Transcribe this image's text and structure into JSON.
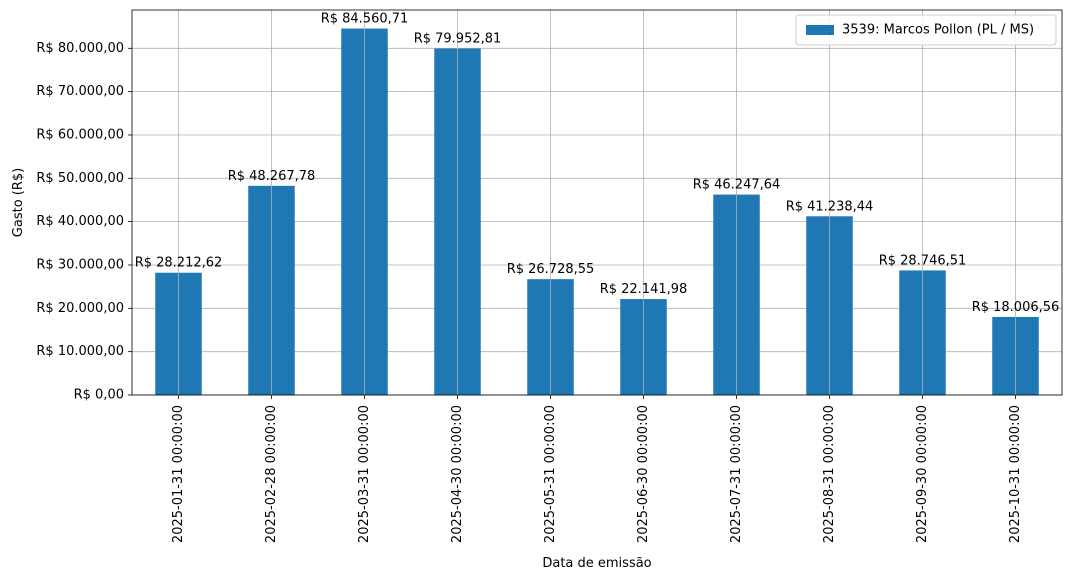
{
  "chart_data": {
    "type": "bar",
    "title": "",
    "xlabel": "Data de emissão",
    "ylabel": "Gasto (R$)",
    "categories": [
      "2025-01-31 00:00:00",
      "2025-02-28 00:00:00",
      "2025-03-31 00:00:00",
      "2025-04-30 00:00:00",
      "2025-05-31 00:00:00",
      "2025-06-30 00:00:00",
      "2025-07-31 00:00:00",
      "2025-08-31 00:00:00",
      "2025-09-30 00:00:00",
      "2025-10-31 00:00:00"
    ],
    "series": [
      {
        "name": "3539: Marcos Pollon (PL / MS)",
        "color": "#1f77b4",
        "values": [
          28212.62,
          48267.78,
          84560.71,
          79952.81,
          26728.55,
          22141.98,
          46247.64,
          41238.44,
          28746.51,
          18006.56
        ],
        "labels": [
          "R$ 28.212,62",
          "R$ 48.267,78",
          "R$ 84.560,71",
          "R$ 79.952,81",
          "R$ 26.728,55",
          "R$ 22.141,98",
          "R$ 46.247,64",
          "R$ 41.238,44",
          "R$ 28.746,51",
          "R$ 18.006,56"
        ]
      }
    ],
    "ylim": [
      0,
      88838
    ],
    "y_ticks": [
      0,
      10000,
      20000,
      30000,
      40000,
      50000,
      60000,
      70000,
      80000
    ],
    "y_tick_labels": [
      "R$ 0,00",
      "R$ 10.000,00",
      "R$ 20.000,00",
      "R$ 30.000,00",
      "R$ 40.000,00",
      "R$ 50.000,00",
      "R$ 60.000,00",
      "R$ 70.000,00",
      "R$ 80.000,00"
    ],
    "grid": true,
    "legend_position": "top-right"
  }
}
